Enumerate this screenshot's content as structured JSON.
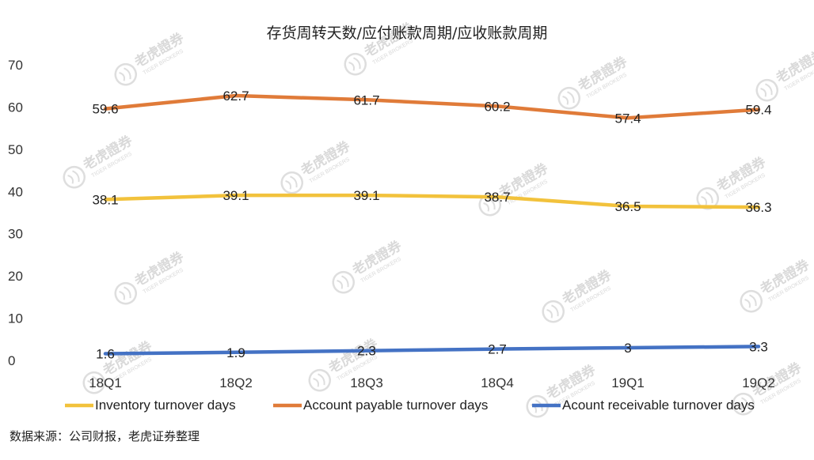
{
  "chart_data": {
    "type": "line",
    "title": "存货周转天数/应付账款周期/应收账款周期",
    "categories": [
      "18Q1",
      "18Q2",
      "18Q3",
      "18Q4",
      "19Q1",
      "19Q2"
    ],
    "ylim": [
      0,
      70
    ],
    "yticks": [
      "0",
      "10",
      "20",
      "30",
      "40",
      "50",
      "60",
      "70"
    ],
    "grid": false,
    "legend_position": "bottom",
    "series": [
      {
        "name": "Inventory turnover days",
        "color": "#F2C23C",
        "values": [
          38.1,
          39.1,
          39.1,
          38.7,
          36.5,
          36.3
        ],
        "labels": [
          "38.1",
          "39.1",
          "39.1",
          "38.7",
          "36.5",
          "36.3"
        ]
      },
      {
        "name": "Account payable turnover days",
        "color": "#E07B39",
        "values": [
          59.6,
          62.7,
          61.7,
          60.2,
          57.4,
          59.4
        ],
        "labels": [
          "59.6",
          "62.7",
          "61.7",
          "60.2",
          "57.4",
          "59.4"
        ]
      },
      {
        "name": "Acount receivable turnover days",
        "color": "#4472C4",
        "values": [
          1.6,
          1.9,
          2.3,
          2.7,
          3,
          3.3
        ],
        "labels": [
          "1.6",
          "1.9",
          "2.3",
          "2.7",
          "3",
          "3.3"
        ]
      }
    ]
  },
  "source_note": "数据来源：公司财报，老虎证券整理",
  "watermark": {
    "text": "老虎證券",
    "subtext": "TIGER BROKERS"
  }
}
